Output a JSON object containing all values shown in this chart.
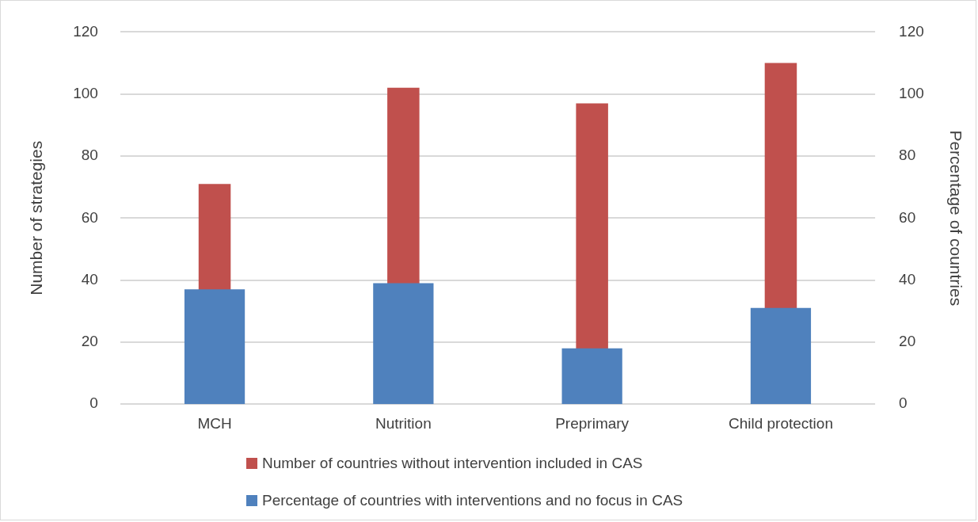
{
  "chart_data": {
    "type": "bar",
    "ylabel": "Number of strategies",
    "y2label": "Percentage of countries",
    "categories": [
      "MCH",
      "Nutrition",
      "Preprimary",
      "Child protection"
    ],
    "series": [
      {
        "name": "Number of countries without intervention included in CAS",
        "color": "#c0504d",
        "values": [
          71,
          102,
          97,
          110
        ]
      },
      {
        "name": "Percentage of countries with interventions and no focus in CAS",
        "color": "#4f81bd",
        "values": [
          37,
          39,
          18,
          31
        ],
        "axis": "y2"
      }
    ],
    "ylim": [
      0,
      120
    ],
    "yticks": [
      0,
      20,
      40,
      60,
      80,
      100,
      120
    ],
    "y2lim": [
      0,
      120
    ],
    "y2ticks": [
      0,
      20,
      40,
      60,
      80,
      100,
      120
    ],
    "grid": "y",
    "legend": "bottom"
  }
}
